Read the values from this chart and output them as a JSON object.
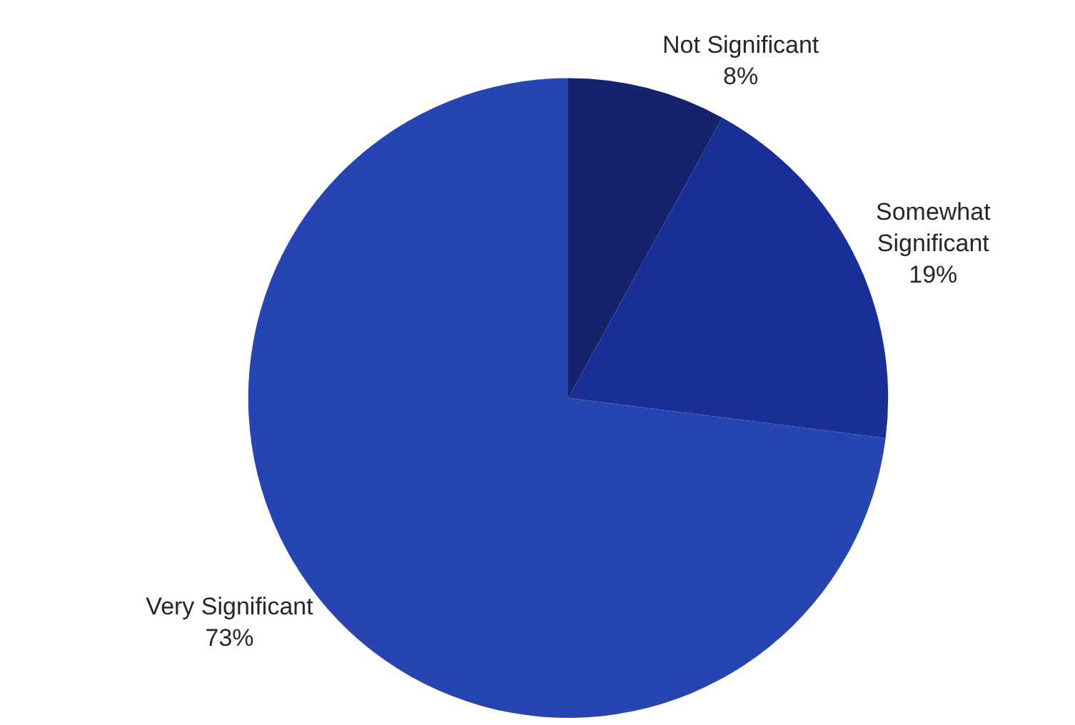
{
  "chart_data": {
    "type": "pie",
    "categories": [
      "Not Significant",
      "Somewhat Significant",
      "Very Significant"
    ],
    "values": [
      8,
      19,
      73
    ],
    "value_labels": [
      "8%",
      "19%",
      "73%"
    ],
    "colors": [
      "#14236b",
      "#1a2f96",
      "#2645b0"
    ]
  }
}
